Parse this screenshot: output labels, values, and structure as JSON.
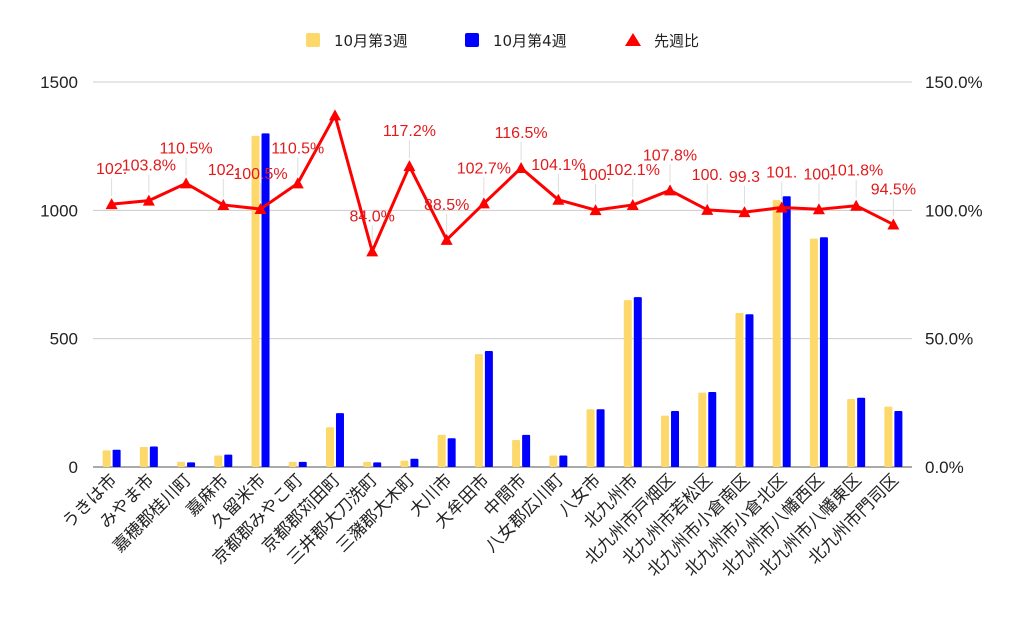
{
  "chart_data": {
    "type": "bar",
    "categories": [
      "うきは市",
      "みやま市",
      "嘉穂郡桂川町",
      "嘉麻市",
      "久留米市",
      "京都郡みやこ町",
      "京都郡苅田町",
      "三井郡大刀洗町",
      "三瀦郡大木町",
      "大川市",
      "大牟田市",
      "中間市",
      "八女郡広川町",
      "八女市",
      "北九州市",
      "北九州市戸畑区",
      "北九州市若松区",
      "北九州市小倉南区",
      "北九州市小倉北区",
      "北九州市八幡西区",
      "北九州市八幡東区",
      "北九州市門司区"
    ],
    "series": [
      {
        "name": "10月第3週",
        "type": "bar",
        "axis": "left",
        "color": "#fdd86b",
        "values": [
          65,
          78,
          20,
          45,
          1290,
          20,
          155,
          20,
          25,
          125,
          440,
          105,
          45,
          225,
          650,
          200,
          290,
          600,
          1040,
          890,
          265,
          235
        ]
      },
      {
        "name": "10月第4週",
        "type": "bar",
        "axis": "left",
        "color": "#0000ff",
        "values": [
          67,
          80,
          18,
          48,
          1300,
          20,
          210,
          18,
          32,
          112,
          452,
          125,
          45,
          225,
          662,
          218,
          292,
          595,
          1055,
          895,
          270,
          218
        ]
      },
      {
        "name": "先週比",
        "type": "line",
        "axis": "right",
        "color": "#ff0000",
        "values": [
          102.4,
          103.8,
          110.5,
          102.1,
          100.5,
          110.5,
          137.0,
          84.0,
          117.2,
          88.5,
          102.7,
          116.5,
          104.1,
          100.1,
          102.1,
          107.8,
          100.2,
          99.3,
          101.1,
          100.4,
          101.8,
          94.5
        ]
      }
    ],
    "data_labels": [
      "102.",
      "103.8%",
      "110.5%",
      "102.",
      "100.5%",
      "110.5%",
      "",
      "84.0%",
      "117.2%",
      "88.5%",
      "102.7%",
      "116.5%",
      "104.1%",
      "100.",
      "102.1%",
      "107.8%",
      "100.",
      "99.3",
      "101.",
      "100.",
      "101.8%",
      "94.5%"
    ],
    "left_axis": {
      "min": 0,
      "max": 1500,
      "ticks": [
        "0",
        "500",
        "1000",
        "1500"
      ]
    },
    "right_axis": {
      "min": 0,
      "max": 150,
      "ticks": [
        "0.0%",
        "50.0%",
        "100.0%",
        "150.0%"
      ]
    },
    "grid": true,
    "legend_position": "top",
    "legend": [
      "10月第3週",
      "10月第4週",
      "先週比"
    ]
  }
}
